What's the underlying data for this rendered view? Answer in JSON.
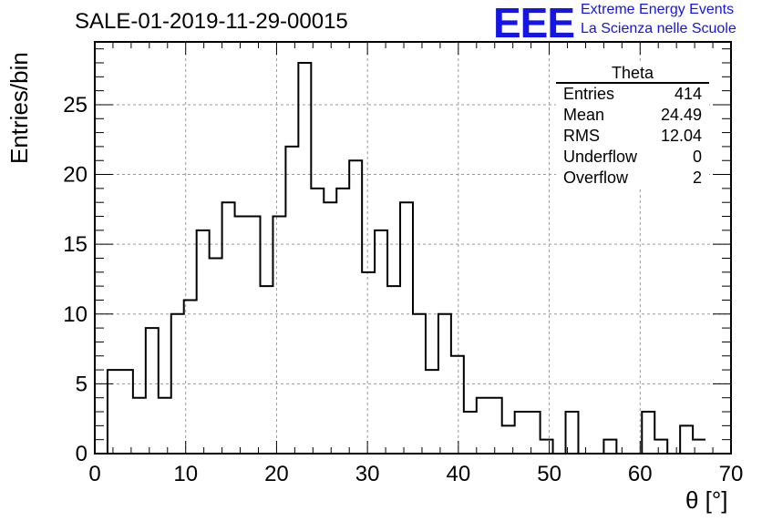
{
  "title": "SALE-01-2019-11-29-00015",
  "logo": {
    "mark": "EEE",
    "line1": "Extreme Energy Events",
    "line2": "La Scienza nelle Scuole",
    "color": "#1515e6"
  },
  "stats": {
    "name": "Theta",
    "rows": [
      {
        "label": "Entries",
        "value": "414"
      },
      {
        "label": "Mean",
        "value": "24.49"
      },
      {
        "label": "RMS",
        "value": "12.04"
      },
      {
        "label": "Underflow",
        "value": "0"
      },
      {
        "label": "Overflow",
        "value": "2"
      }
    ]
  },
  "chart_data": {
    "type": "bar",
    "style": "step-histogram",
    "xlabel": "θ [°]",
    "ylabel": "Entries/bin",
    "xlim": [
      0,
      70
    ],
    "ylim": [
      0,
      29.5
    ],
    "grid": true,
    "bin_width": 1.4,
    "bin_start": 1.4,
    "values": [
      6,
      6,
      4,
      9,
      4,
      10,
      11,
      16,
      14,
      18,
      17,
      17,
      12,
      17,
      22,
      28,
      19,
      18,
      19,
      21,
      13,
      16,
      12,
      18,
      10,
      6,
      10,
      7,
      3,
      4,
      4,
      2,
      3,
      3,
      1,
      0,
      3,
      0,
      0,
      1,
      0,
      0,
      3,
      1,
      0,
      2,
      1
    ],
    "x_ticks": [
      "0",
      "10",
      "20",
      "30",
      "40",
      "50",
      "60",
      "70"
    ],
    "y_ticks": [
      "0",
      "5",
      "10",
      "15",
      "20",
      "25"
    ]
  }
}
